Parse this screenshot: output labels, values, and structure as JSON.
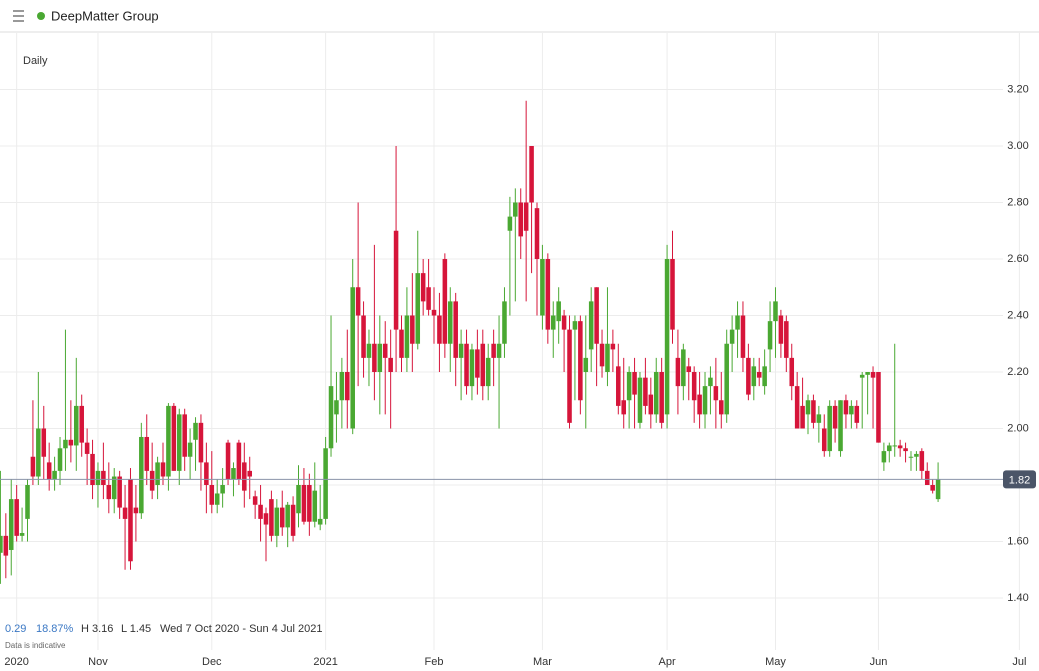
{
  "header": {
    "title": "DeepMatter Group"
  },
  "info": {
    "interval": "Daily",
    "change": "0.29",
    "change_pct": "18.87%",
    "high": "H 3.16",
    "low": "L 1.45",
    "range": "Wed 7 Oct 2020 - Sun 4 Jul 2021",
    "note": "Data is indicative"
  },
  "chart_data": {
    "type": "candlestick",
    "up_color": "#4aa832",
    "down_color": "#d6153a",
    "ylim": [
      1.2,
      3.4
    ],
    "yticks": [
      {
        "value": 1.4,
        "label": "1.40"
      },
      {
        "value": 1.6,
        "label": "1.60"
      },
      {
        "value": 1.8,
        "label": "1.80"
      },
      {
        "value": 2.0,
        "label": "2.00"
      },
      {
        "value": 2.2,
        "label": "2.20"
      },
      {
        "value": 2.4,
        "label": "2.40"
      },
      {
        "value": 2.6,
        "label": "2.60"
      },
      {
        "value": 2.8,
        "label": "2.80"
      },
      {
        "value": 3.0,
        "label": "3.00"
      },
      {
        "value": 3.2,
        "label": "3.20"
      }
    ],
    "xlim": [
      0,
      191.6
    ],
    "xticks": [
      {
        "value": 3,
        "label": "2020"
      },
      {
        "value": 18,
        "label": "Nov"
      },
      {
        "value": 39,
        "label": "Dec"
      },
      {
        "value": 60,
        "label": "2021"
      },
      {
        "value": 80,
        "label": "Feb"
      },
      {
        "value": 100,
        "label": "Mar"
      },
      {
        "value": 123,
        "label": "Apr"
      },
      {
        "value": 143,
        "label": "May"
      },
      {
        "value": 162,
        "label": "Jun"
      },
      {
        "value": 188,
        "label": "Jul"
      }
    ],
    "grid": true,
    "last_price": {
      "value": 1.82,
      "label": "1.82"
    },
    "open": [
      1.56,
      1.62,
      1.57,
      1.75,
      1.62,
      1.68,
      1.9,
      1.83,
      2.0,
      1.88,
      1.82,
      1.85,
      1.93,
      1.96,
      1.94,
      2.08,
      1.95,
      1.91,
      1.8,
      1.85,
      1.8,
      1.75,
      1.83,
      1.72,
      1.82,
      1.72,
      1.7,
      1.97,
      1.85,
      1.8,
      1.88,
      1.83,
      2.08,
      1.85,
      2.05,
      1.9,
      1.96,
      2.02,
      1.88,
      1.8,
      1.73,
      1.77,
      1.95,
      1.82,
      1.95,
      1.88,
      1.85,
      1.76,
      1.73,
      1.7,
      1.75,
      1.62,
      1.72,
      1.65,
      1.73,
      1.7,
      1.8,
      1.8,
      1.67,
      1.66,
      1.68,
      1.93,
      2.05,
      2.1,
      2.2,
      2.0,
      2.5,
      2.4,
      2.25,
      2.3,
      2.2,
      2.3,
      2.25,
      2.7,
      2.35,
      2.25,
      2.4,
      2.3,
      2.55,
      2.5,
      2.42,
      2.4,
      2.6,
      2.3,
      2.45,
      2.25,
      2.3,
      2.15,
      2.28,
      2.3,
      2.15,
      2.3,
      2.25,
      2.3,
      2.7,
      2.75,
      2.8,
      2.8,
      3.0,
      2.78,
      2.4,
      2.6,
      2.35,
      2.38,
      2.4,
      2.35,
      2.35,
      2.38,
      2.2,
      2.28,
      2.5,
      2.3,
      2.2,
      2.3,
      2.22,
      2.1,
      2.1,
      2.2,
      2.02,
      2.18,
      2.12,
      2.05,
      2.2,
      2.05,
      2.6,
      2.25,
      2.15,
      2.22,
      2.2,
      2.12,
      2.05,
      2.15,
      2.15,
      2.1,
      2.05,
      2.3,
      2.35,
      2.4,
      2.25,
      2.15,
      2.2,
      2.15,
      2.28,
      2.38,
      2.4,
      2.38,
      2.25,
      2.15,
      2.08,
      2.05,
      2.1,
      2.02,
      2.0,
      1.92,
      2.08,
      1.92,
      2.1,
      2.05,
      2.08,
      2.18,
      2.19,
      2.2,
      2.2,
      1.88,
      1.92,
      1.94,
      1.94,
      1.93,
      1.9,
      1.9,
      1.92,
      1.85,
      1.8,
      1.75
    ],
    "high": [
      1.85,
      1.7,
      1.82,
      1.8,
      1.72,
      1.82,
      2.1,
      2.2,
      2.08,
      1.95,
      1.9,
      1.97,
      2.35,
      2.1,
      2.25,
      2.12,
      2.0,
      1.96,
      1.88,
      1.95,
      1.88,
      1.86,
      1.85,
      1.8,
      1.86,
      1.8,
      2.02,
      2.05,
      1.95,
      1.9,
      1.95,
      2.09,
      2.09,
      2.07,
      2.07,
      2.0,
      2.04,
      2.05,
      1.95,
      1.92,
      1.82,
      1.86,
      1.96,
      1.88,
      1.96,
      1.95,
      1.9,
      1.78,
      1.8,
      1.72,
      1.78,
      1.75,
      1.78,
      1.74,
      1.76,
      1.87,
      1.86,
      1.84,
      1.88,
      1.8,
      1.97,
      2.4,
      2.2,
      2.25,
      2.35,
      2.6,
      2.8,
      2.45,
      2.35,
      2.65,
      2.4,
      2.38,
      2.35,
      3.0,
      2.4,
      2.5,
      2.55,
      2.7,
      2.6,
      2.6,
      2.5,
      2.48,
      2.62,
      2.5,
      2.48,
      2.35,
      2.35,
      2.3,
      2.35,
      2.35,
      2.3,
      2.35,
      2.4,
      2.5,
      2.82,
      2.85,
      2.85,
      3.16,
      3.0,
      2.8,
      2.65,
      2.62,
      2.45,
      2.5,
      2.42,
      2.4,
      2.4,
      2.4,
      2.4,
      2.5,
      2.5,
      2.35,
      2.5,
      2.35,
      2.3,
      2.25,
      2.22,
      2.25,
      2.2,
      2.25,
      2.18,
      2.25,
      2.25,
      2.65,
      2.7,
      2.35,
      2.3,
      2.25,
      2.22,
      2.2,
      2.2,
      2.22,
      2.25,
      2.2,
      2.35,
      2.4,
      2.45,
      2.45,
      2.3,
      2.25,
      2.25,
      2.28,
      2.45,
      2.5,
      2.42,
      2.4,
      2.3,
      2.2,
      2.18,
      2.12,
      2.12,
      2.08,
      2.05,
      2.1,
      2.1,
      2.1,
      2.12,
      2.1,
      2.1,
      2.2,
      2.2,
      2.22,
      2.2,
      1.95,
      1.95,
      2.3,
      1.96,
      1.95,
      1.92,
      1.92,
      1.93,
      1.88,
      1.82,
      1.88
    ],
    "low": [
      1.45,
      1.47,
      1.48,
      1.6,
      1.6,
      1.6,
      1.8,
      1.8,
      1.82,
      1.78,
      1.78,
      1.8,
      1.85,
      1.88,
      1.85,
      1.9,
      1.8,
      1.75,
      1.72,
      1.75,
      1.7,
      1.7,
      1.68,
      1.5,
      1.5,
      1.6,
      1.68,
      1.8,
      1.75,
      1.75,
      1.8,
      1.78,
      1.85,
      1.8,
      1.85,
      1.82,
      1.85,
      1.78,
      1.7,
      1.7,
      1.7,
      1.72,
      1.8,
      1.76,
      1.8,
      1.72,
      1.75,
      1.68,
      1.6,
      1.53,
      1.6,
      1.58,
      1.62,
      1.58,
      1.6,
      1.65,
      1.66,
      1.62,
      1.65,
      1.64,
      1.66,
      1.9,
      1.95,
      2.0,
      2.0,
      1.98,
      2.15,
      2.18,
      2.15,
      2.1,
      2.05,
      2.05,
      2.0,
      2.2,
      2.2,
      2.2,
      2.2,
      2.28,
      2.4,
      2.4,
      2.3,
      2.2,
      2.25,
      2.2,
      2.15,
      2.1,
      2.12,
      2.1,
      2.12,
      2.1,
      2.1,
      2.15,
      2.0,
      2.25,
      2.4,
      2.45,
      2.6,
      2.45,
      2.55,
      2.4,
      2.35,
      2.3,
      2.25,
      2.3,
      2.2,
      2.0,
      2.1,
      2.05,
      2.0,
      2.2,
      2.15,
      2.18,
      2.15,
      2.2,
      2.05,
      2.0,
      2.0,
      2.0,
      2.0,
      2.05,
      2.0,
      2.02,
      2.0,
      2.0,
      2.3,
      2.05,
      2.1,
      2.1,
      2.02,
      2.0,
      2.0,
      2.05,
      2.0,
      2.0,
      2.02,
      2.2,
      2.25,
      2.2,
      2.1,
      2.1,
      2.15,
      2.12,
      2.2,
      2.25,
      2.25,
      2.2,
      2.1,
      2.0,
      2.0,
      1.98,
      2.0,
      1.95,
      1.9,
      1.9,
      1.95,
      1.9,
      2.0,
      2.0,
      2.0,
      2.0,
      2.05,
      2.0,
      1.95,
      1.85,
      1.88,
      1.9,
      1.9,
      1.88,
      1.85,
      1.85,
      1.82,
      1.8,
      1.77,
      1.74
    ],
    "close": [
      1.62,
      1.55,
      1.75,
      1.62,
      1.63,
      1.8,
      1.83,
      2.0,
      1.9,
      1.82,
      1.85,
      1.93,
      1.96,
      1.94,
      2.08,
      1.95,
      1.91,
      1.8,
      1.85,
      1.8,
      1.75,
      1.83,
      1.72,
      1.68,
      1.53,
      1.7,
      1.97,
      1.85,
      1.78,
      1.88,
      1.83,
      2.08,
      1.85,
      2.05,
      1.9,
      1.95,
      2.02,
      1.88,
      1.8,
      1.73,
      1.77,
      1.8,
      1.82,
      1.86,
      1.82,
      1.78,
      1.83,
      1.73,
      1.68,
      1.66,
      1.62,
      1.72,
      1.65,
      1.73,
      1.62,
      1.8,
      1.67,
      1.67,
      1.78,
      1.68,
      1.93,
      2.15,
      2.1,
      2.2,
      2.1,
      2.5,
      2.4,
      2.25,
      2.3,
      2.2,
      2.3,
      2.25,
      2.2,
      2.35,
      2.25,
      2.4,
      2.3,
      2.55,
      2.45,
      2.42,
      2.4,
      2.3,
      2.3,
      2.45,
      2.25,
      2.3,
      2.15,
      2.28,
      2.18,
      2.15,
      2.25,
      2.25,
      2.3,
      2.45,
      2.75,
      2.8,
      2.68,
      2.7,
      2.8,
      2.6,
      2.6,
      2.35,
      2.4,
      2.45,
      2.35,
      2.02,
      2.38,
      2.1,
      2.25,
      2.45,
      2.3,
      2.22,
      2.3,
      2.28,
      2.08,
      2.05,
      2.2,
      2.12,
      2.18,
      2.08,
      2.05,
      2.2,
      2.02,
      2.6,
      2.35,
      2.15,
      2.28,
      2.2,
      2.1,
      2.05,
      2.15,
      2.18,
      2.1,
      2.05,
      2.3,
      2.35,
      2.4,
      2.25,
      2.12,
      2.22,
      2.18,
      2.22,
      2.38,
      2.45,
      2.3,
      2.25,
      2.15,
      2.0,
      2.0,
      2.1,
      2.02,
      2.05,
      1.92,
      2.08,
      2.0,
      2.1,
      2.05,
      2.08,
      2.02,
      2.19,
      2.2,
      2.18,
      1.95,
      1.92,
      1.94,
      1.94,
      1.93,
      1.92,
      1.9,
      1.91,
      1.85,
      1.8,
      1.78,
      1.82
    ]
  }
}
